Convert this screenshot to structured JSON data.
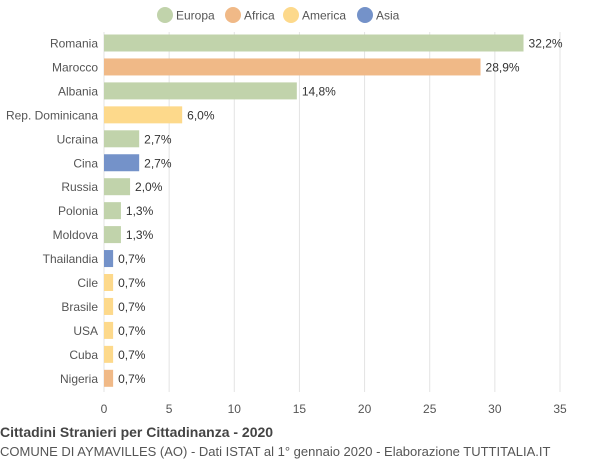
{
  "chart_data": {
    "type": "bar",
    "orientation": "horizontal",
    "categories": [
      "Romania",
      "Marocco",
      "Albania",
      "Rep. Dominicana",
      "Ucraina",
      "Cina",
      "Russia",
      "Polonia",
      "Moldova",
      "Thailandia",
      "Cile",
      "Brasile",
      "USA",
      "Cuba",
      "Nigeria"
    ],
    "values": [
      32.2,
      28.9,
      14.8,
      6.0,
      2.7,
      2.7,
      2.0,
      1.3,
      1.3,
      0.7,
      0.7,
      0.7,
      0.7,
      0.7,
      0.7
    ],
    "value_labels": [
      "32,2%",
      "28,9%",
      "14,8%",
      "6,0%",
      "2,7%",
      "2,7%",
      "2,0%",
      "1,3%",
      "1,3%",
      "0,7%",
      "0,7%",
      "0,7%",
      "0,7%",
      "0,7%",
      "0,7%"
    ],
    "groups": [
      "Europa",
      "Africa",
      "Europa",
      "America",
      "Europa",
      "Asia",
      "Europa",
      "Europa",
      "Europa",
      "Asia",
      "America",
      "America",
      "America",
      "America",
      "Africa"
    ],
    "legend": [
      {
        "name": "Europa",
        "color": "#c1d3ab"
      },
      {
        "name": "Africa",
        "color": "#f0b987"
      },
      {
        "name": "America",
        "color": "#fdd98b"
      },
      {
        "name": "Asia",
        "color": "#7492c9"
      }
    ],
    "legend_position": "top",
    "xlim": [
      0,
      35
    ],
    "x_ticks": [
      0,
      5,
      10,
      15,
      20,
      25,
      30,
      35
    ],
    "grid": true,
    "title": "Cittadini Stranieri per Cittadinanza - 2020",
    "subtitle": "COMUNE DI AYMAVILLES (AO) - Dati ISTAT al 1° gennaio 2020 - Elaborazione TUTTITALIA.IT"
  }
}
